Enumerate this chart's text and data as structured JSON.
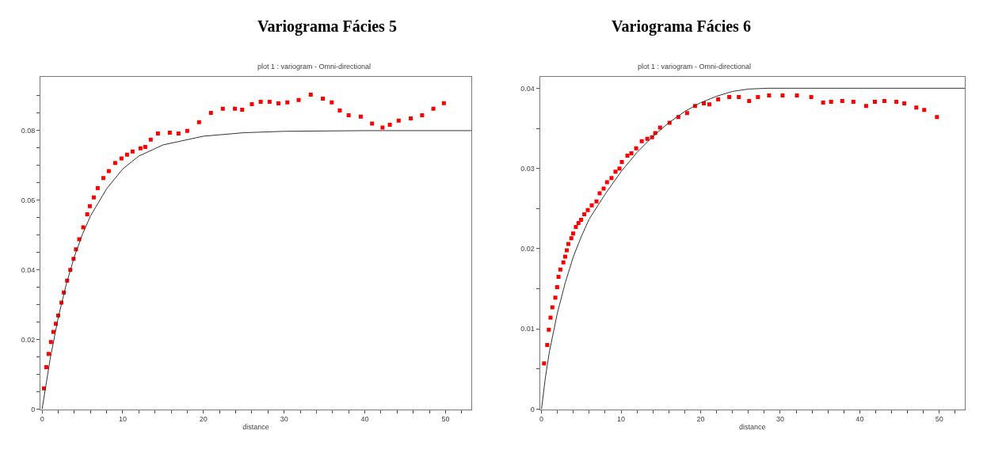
{
  "chart_data": [
    {
      "type": "scatter",
      "title": "Variograma Fácies 5",
      "subtitle": "plot 1 : variogram - Omni-directional",
      "xlabel": "distance",
      "xlim": [
        -0.2,
        53.2
      ],
      "ylim": [
        0,
        0.0954
      ],
      "xticks": [
        0,
        {
          "value": 2,
          "label": null
        },
        {
          "value": 4,
          "label": null
        },
        {
          "value": 6,
          "label": null
        },
        {
          "value": 8,
          "label": null
        },
        10,
        {
          "value": 12,
          "label": null
        },
        {
          "value": 14,
          "label": null
        },
        {
          "value": 16,
          "label": null
        },
        {
          "value": 18,
          "label": null
        },
        20,
        {
          "value": 22,
          "label": null
        },
        {
          "value": 24,
          "label": null
        },
        {
          "value": 26,
          "label": null
        },
        {
          "value": 28,
          "label": null
        },
        30,
        {
          "value": 32,
          "label": null
        },
        {
          "value": 34,
          "label": null
        },
        {
          "value": 36,
          "label": null
        },
        {
          "value": 38,
          "label": null
        },
        40,
        {
          "value": 42,
          "label": null
        },
        {
          "value": 44,
          "label": null
        },
        {
          "value": 46,
          "label": null
        },
        {
          "value": 48,
          "label": null
        },
        50,
        {
          "value": 52,
          "label": null
        }
      ],
      "yticks": [
        0,
        {
          "value": 0.005,
          "label": null
        },
        {
          "value": 0.01,
          "label": null
        },
        {
          "value": 0.015,
          "label": null
        },
        0.02,
        {
          "value": 0.025,
          "label": null
        },
        {
          "value": 0.03,
          "label": null
        },
        {
          "value": 0.035,
          "label": null
        },
        0.04,
        {
          "value": 0.045,
          "label": null
        },
        {
          "value": 0.05,
          "label": null
        },
        {
          "value": 0.055,
          "label": null
        },
        0.06,
        {
          "value": 0.065,
          "label": null
        },
        {
          "value": 0.07,
          "label": null
        },
        {
          "value": 0.075,
          "label": null
        },
        0.08,
        {
          "value": 0.085,
          "label": null
        },
        {
          "value": 0.09,
          "label": null
        }
      ],
      "series": [
        {
          "marker": "square",
          "color": "#ff0000",
          "x": [
            0.23,
            0.52,
            0.81,
            1.1,
            1.4,
            1.7,
            2.0,
            2.4,
            2.7,
            3.1,
            3.5,
            3.9,
            4.2,
            4.6,
            5.1,
            5.6,
            5.92,
            6.41,
            6.9,
            7.59,
            8.27,
            9.06,
            9.84,
            10.53,
            11.22,
            12.2,
            12.79,
            13.47,
            14.36,
            15.83,
            16.91,
            17.99,
            19.46,
            20.93,
            22.4,
            23.9,
            24.8,
            26.0,
            27.1,
            28.2,
            29.3,
            30.4,
            31.8,
            33.3,
            34.8,
            35.9,
            36.9,
            38.0,
            39.5,
            40.9,
            42.2,
            43.1,
            44.2,
            45.7,
            47.1,
            48.5,
            49.8
          ],
          "values": [
            0.006,
            0.0121,
            0.0159,
            0.0193,
            0.0222,
            0.0245,
            0.0269,
            0.0306,
            0.0335,
            0.0369,
            0.04,
            0.0432,
            0.0459,
            0.0488,
            0.0522,
            0.056,
            0.0583,
            0.0608,
            0.0635,
            0.0664,
            0.0684,
            0.0707,
            0.072,
            0.0731,
            0.074,
            0.0749,
            0.0753,
            0.0774,
            0.0792,
            0.0794,
            0.0792,
            0.0799,
            0.0824,
            0.0851,
            0.0863,
            0.0863,
            0.086,
            0.0876,
            0.0883,
            0.0883,
            0.0878,
            0.0881,
            0.0888,
            0.0903,
            0.0892,
            0.0881,
            0.0858,
            0.0844,
            0.084,
            0.082,
            0.0809,
            0.0817,
            0.0829,
            0.0835,
            0.0844,
            0.0863,
            0.0879
          ]
        },
        {
          "type": "line",
          "marker": "none",
          "line_style": "solid",
          "color": "#333333",
          "x": [
            0,
            1,
            2,
            3,
            4,
            5,
            6,
            8,
            10,
            12,
            15,
            20,
            25,
            30,
            40,
            53.2
          ],
          "values": [
            0,
            0.0144,
            0.0263,
            0.0359,
            0.0438,
            0.0502,
            0.0555,
            0.0633,
            0.069,
            0.0727,
            0.0759,
            0.0784,
            0.0794,
            0.0798,
            0.08,
            0.08
          ]
        }
      ]
    },
    {
      "type": "scatter",
      "title": "Variograma Fácies 6",
      "subtitle": "plot 1 : variogram - Omni-directional",
      "xlabel": "distance",
      "xlim": [
        -0.2,
        53.2
      ],
      "ylim": [
        0,
        0.0414
      ],
      "xticks": [
        0,
        {
          "value": 2,
          "label": null
        },
        {
          "value": 4,
          "label": null
        },
        {
          "value": 6,
          "label": null
        },
        {
          "value": 8,
          "label": null
        },
        10,
        {
          "value": 12,
          "label": null
        },
        {
          "value": 14,
          "label": null
        },
        {
          "value": 16,
          "label": null
        },
        {
          "value": 18,
          "label": null
        },
        20,
        {
          "value": 22,
          "label": null
        },
        {
          "value": 24,
          "label": null
        },
        {
          "value": 26,
          "label": null
        },
        {
          "value": 28,
          "label": null
        },
        30,
        {
          "value": 32,
          "label": null
        },
        {
          "value": 34,
          "label": null
        },
        {
          "value": 36,
          "label": null
        },
        {
          "value": 38,
          "label": null
        },
        40,
        {
          "value": 42,
          "label": null
        },
        {
          "value": 44,
          "label": null
        },
        {
          "value": 46,
          "label": null
        },
        {
          "value": 48,
          "label": null
        },
        50,
        {
          "value": 52,
          "label": null
        }
      ],
      "yticks": [
        0,
        {
          "value": 0.005,
          "label": null
        },
        0.01,
        {
          "value": 0.015,
          "label": null
        },
        0.02,
        {
          "value": 0.025,
          "label": null
        },
        0.03,
        {
          "value": 0.035,
          "label": null
        },
        0.04
      ],
      "series": [
        {
          "marker": "square",
          "color": "#ff0000",
          "x": [
            0.32,
            0.72,
            0.92,
            1.14,
            1.37,
            1.74,
            1.97,
            2.14,
            2.38,
            2.75,
            2.98,
            3.18,
            3.38,
            3.75,
            3.98,
            4.32,
            4.65,
            4.98,
            5.38,
            5.82,
            6.32,
            6.91,
            7.31,
            7.81,
            8.24,
            8.8,
            9.3,
            9.8,
            10.1,
            10.8,
            11.3,
            11.9,
            12.6,
            13.3,
            13.9,
            14.3,
            14.9,
            16.1,
            17.2,
            18.3,
            19.3,
            20.4,
            21.1,
            22.2,
            23.6,
            24.8,
            26.1,
            27.2,
            28.6,
            30.3,
            32.1,
            33.9,
            35.4,
            36.4,
            37.8,
            39.2,
            40.8,
            41.9,
            43.1,
            44.6,
            45.6,
            47.1,
            48.1,
            49.7
          ],
          "values": [
            0.0057,
            0.008,
            0.0099,
            0.0114,
            0.0127,
            0.0139,
            0.0152,
            0.0165,
            0.0174,
            0.0183,
            0.019,
            0.0198,
            0.0206,
            0.0213,
            0.0219,
            0.0227,
            0.0232,
            0.0236,
            0.0243,
            0.0248,
            0.0254,
            0.0259,
            0.0269,
            0.0275,
            0.0283,
            0.0288,
            0.0296,
            0.03,
            0.0308,
            0.0316,
            0.0319,
            0.0325,
            0.0334,
            0.0337,
            0.0339,
            0.0344,
            0.0351,
            0.0357,
            0.0364,
            0.0369,
            0.0378,
            0.0381,
            0.038,
            0.0386,
            0.0389,
            0.0389,
            0.0384,
            0.0389,
            0.0391,
            0.0391,
            0.0391,
            0.0389,
            0.0382,
            0.0383,
            0.0384,
            0.0383,
            0.0378,
            0.0383,
            0.0384,
            0.0383,
            0.0381,
            0.0376,
            0.0373,
            0.0364
          ]
        },
        {
          "type": "line",
          "marker": "none",
          "line_style": "solid",
          "color": "#333333",
          "x": [
            0,
            0.5,
            1,
            2,
            3,
            4,
            5,
            6,
            8,
            10,
            12,
            14,
            16,
            18,
            20,
            22,
            24,
            26,
            28.5,
            53.2
          ],
          "values": [
            0,
            0.004,
            0.0072,
            0.012,
            0.0158,
            0.019,
            0.0215,
            0.0237,
            0.0268,
            0.0296,
            0.032,
            0.034,
            0.0357,
            0.0371,
            0.0382,
            0.039,
            0.0396,
            0.0399,
            0.04,
            0.04
          ]
        }
      ]
    }
  ]
}
